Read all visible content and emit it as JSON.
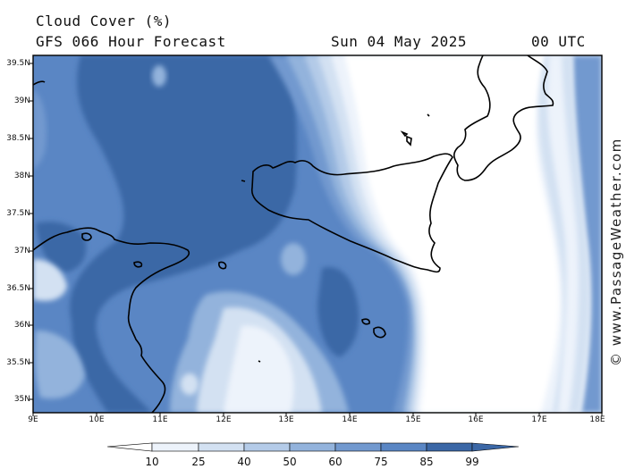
{
  "header": {
    "title": "Cloud Cover (%)",
    "subtitle": "GFS 066 Hour Forecast",
    "date": "Sun 04 May 2025",
    "time": "00 UTC"
  },
  "axes": {
    "lat_labels": [
      "39.5N",
      "39N",
      "38.5N",
      "38N",
      "37.5N",
      "37N",
      "36.5N",
      "36N",
      "35.5N",
      "35N"
    ],
    "lon_labels": [
      "9E",
      "10E",
      "11E",
      "12E",
      "13E",
      "14E",
      "15E",
      "16E",
      "17E",
      "18E"
    ]
  },
  "legend": {
    "levels": [
      "10",
      "25",
      "40",
      "50",
      "60",
      "75",
      "85",
      "99"
    ],
    "colors": [
      "#ffffff",
      "#edf3fb",
      "#d3e1f2",
      "#b4cbe8",
      "#93b3dc",
      "#7299cf",
      "#5a86c4",
      "#3b67a6"
    ]
  },
  "credit": "© www.PassageWeather.com"
}
